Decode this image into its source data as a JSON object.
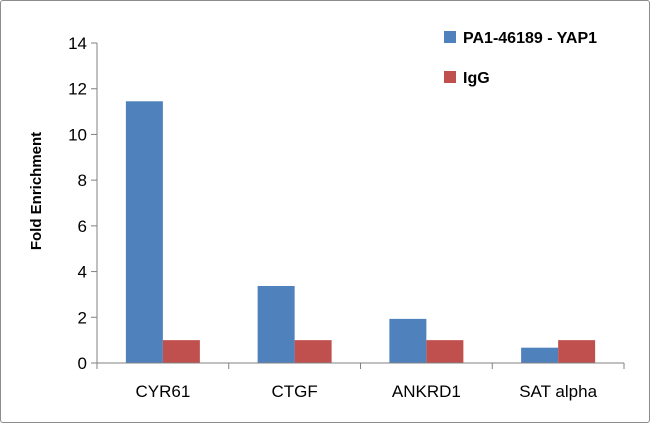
{
  "chart_data": {
    "type": "bar",
    "title": "",
    "xlabel": "",
    "ylabel": "Fold Enrichment",
    "ylim": [
      0,
      14
    ],
    "yticks": [
      0,
      2,
      4,
      6,
      8,
      10,
      12,
      14
    ],
    "categories": [
      "CYR61",
      "CTGF",
      "ANKRD1",
      "SAT alpha"
    ],
    "series": [
      {
        "name": "PA1-46189 - YAP1",
        "color": "#4f81bd",
        "values": [
          11.45,
          3.37,
          1.93,
          0.67
        ]
      },
      {
        "name": "IgG",
        "color": "#c0504d",
        "values": [
          1.0,
          1.0,
          1.0,
          1.0
        ]
      }
    ],
    "grid": false,
    "legend": "top-right"
  }
}
